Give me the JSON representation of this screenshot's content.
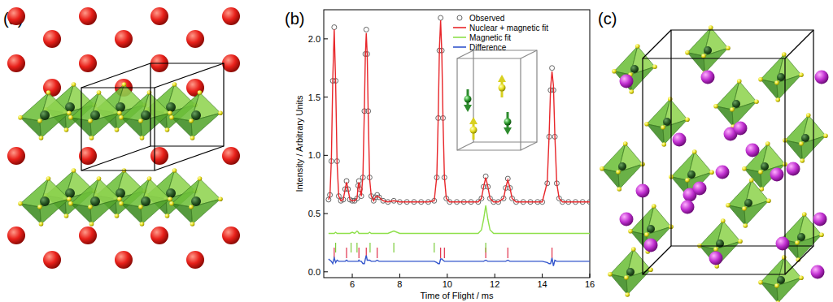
{
  "panel_labels": [
    "(a)",
    "(b)",
    "(c)"
  ],
  "chart_data": {
    "type": "line",
    "x_label": "Time of Flight / ms",
    "y_label": "Intensity / Arbitrary Units",
    "xlim": [
      4.8,
      16
    ],
    "ylim": [
      -0.05,
      2.25
    ],
    "xticks": [
      6,
      8,
      10,
      12,
      14,
      16
    ],
    "yticks": [
      {
        "value": 0,
        "label": "0.0"
      },
      0.5,
      {
        "value": 1,
        "label": "1.0"
      },
      1.5,
      {
        "value": 2,
        "label": "2.0"
      }
    ],
    "grid": false,
    "legend": "upper right",
    "x": [
      5.0,
      5.06,
      5.12,
      5.18,
      5.24,
      5.3,
      5.36,
      5.43,
      5.52,
      5.62,
      5.7,
      5.76,
      5.82,
      5.9,
      6.0,
      6.1,
      6.2,
      6.25,
      6.28,
      6.32,
      6.38,
      6.45,
      6.51,
      6.55,
      6.59,
      6.63,
      6.67,
      6.73,
      6.8,
      6.9,
      6.97,
      7.05,
      7.13,
      7.3,
      7.5,
      7.75,
      8.0,
      8.3,
      8.6,
      8.9,
      9.2,
      9.45,
      9.56,
      9.62,
      9.67,
      9.72,
      9.77,
      9.82,
      9.88,
      9.96,
      10.1,
      10.4,
      10.7,
      11.0,
      11.3,
      11.44,
      11.53,
      11.62,
      11.71,
      11.8,
      11.95,
      12.15,
      12.37,
      12.46,
      12.55,
      12.64,
      12.73,
      12.9,
      13.2,
      13.5,
      13.8,
      14.0,
      14.21,
      14.29,
      14.35,
      14.41,
      14.47,
      14.53,
      14.61,
      14.71,
      14.85,
      15.1,
      15.4,
      15.7,
      16.0
    ],
    "series": [
      {
        "name": "Observed",
        "type": "scatter",
        "marker": "circle",
        "color": "#666666",
        "values": [
          0.62,
          0.66,
          0.95,
          1.64,
          2.1,
          1.64,
          0.95,
          0.65,
          0.61,
          0.62,
          0.71,
          0.78,
          0.71,
          0.62,
          0.61,
          0.61,
          0.63,
          0.74,
          0.78,
          0.71,
          0.65,
          0.81,
          1.38,
          1.87,
          2.08,
          1.87,
          1.38,
          0.81,
          0.65,
          0.61,
          0.64,
          0.66,
          0.64,
          0.61,
          0.6,
          0.61,
          0.6,
          0.6,
          0.6,
          0.6,
          0.6,
          0.61,
          0.81,
          1.32,
          1.9,
          2.18,
          1.9,
          1.32,
          0.81,
          0.63,
          0.6,
          0.6,
          0.6,
          0.6,
          0.6,
          0.63,
          0.73,
          0.82,
          0.73,
          0.63,
          0.6,
          0.6,
          0.63,
          0.72,
          0.8,
          0.72,
          0.63,
          0.6,
          0.6,
          0.6,
          0.6,
          0.6,
          0.76,
          1.16,
          1.56,
          1.75,
          1.56,
          1.16,
          0.76,
          0.63,
          0.6,
          0.6,
          0.6,
          0.6,
          0.6
        ]
      },
      {
        "name": "Nuclear + magnetic fit",
        "type": "line",
        "color": "#e8262a",
        "values": [
          0.62,
          0.65,
          0.96,
          1.66,
          2.08,
          1.62,
          0.94,
          0.65,
          0.61,
          0.62,
          0.71,
          0.77,
          0.71,
          0.62,
          0.61,
          0.61,
          0.63,
          0.74,
          0.77,
          0.71,
          0.65,
          0.83,
          1.4,
          1.85,
          2.05,
          1.86,
          1.37,
          0.8,
          0.65,
          0.61,
          0.64,
          0.65,
          0.64,
          0.61,
          0.6,
          0.61,
          0.6,
          0.6,
          0.6,
          0.6,
          0.6,
          0.61,
          0.82,
          1.34,
          1.92,
          2.16,
          1.88,
          1.31,
          0.81,
          0.63,
          0.6,
          0.6,
          0.6,
          0.6,
          0.6,
          0.63,
          0.73,
          0.81,
          0.73,
          0.63,
          0.6,
          0.6,
          0.63,
          0.72,
          0.79,
          0.72,
          0.63,
          0.6,
          0.6,
          0.6,
          0.6,
          0.6,
          0.77,
          1.18,
          1.58,
          1.72,
          1.6,
          1.17,
          0.76,
          0.63,
          0.6,
          0.6,
          0.6,
          0.6,
          0.6
        ]
      },
      {
        "name": "Magnetic fit",
        "type": "line",
        "color": "#8ee04a",
        "values": [
          0.33,
          0.33,
          0.33,
          0.33,
          0.33,
          0.34,
          0.33,
          0.33,
          0.33,
          0.33,
          0.33,
          0.33,
          0.33,
          0.33,
          0.34,
          0.33,
          0.35,
          0.34,
          0.33,
          0.33,
          0.33,
          0.33,
          0.33,
          0.33,
          0.33,
          0.33,
          0.33,
          0.34,
          0.33,
          0.33,
          0.33,
          0.33,
          0.33,
          0.33,
          0.33,
          0.35,
          0.33,
          0.33,
          0.33,
          0.33,
          0.33,
          0.33,
          0.33,
          0.33,
          0.33,
          0.33,
          0.33,
          0.33,
          0.33,
          0.33,
          0.33,
          0.33,
          0.33,
          0.33,
          0.33,
          0.36,
          0.45,
          0.57,
          0.45,
          0.36,
          0.33,
          0.33,
          0.33,
          0.33,
          0.33,
          0.33,
          0.33,
          0.33,
          0.33,
          0.33,
          0.33,
          0.33,
          0.33,
          0.33,
          0.33,
          0.33,
          0.33,
          0.33,
          0.33,
          0.33,
          0.33,
          0.33,
          0.33,
          0.33,
          0.33
        ]
      },
      {
        "name": "Difference",
        "type": "line",
        "color": "#3355cc",
        "values": [
          0.11,
          0.1,
          0.09,
          0.07,
          0.12,
          0.08,
          0.1,
          0.09,
          0.09,
          0.09,
          0.09,
          0.1,
          0.09,
          0.09,
          0.09,
          0.09,
          0.09,
          0.09,
          0.1,
          0.09,
          0.09,
          0.07,
          0.07,
          0.11,
          0.14,
          0.1,
          0.1,
          0.1,
          0.09,
          0.09,
          0.09,
          0.1,
          0.09,
          0.09,
          0.09,
          0.09,
          0.09,
          0.09,
          0.09,
          0.09,
          0.09,
          0.09,
          0.08,
          0.07,
          0.07,
          0.11,
          0.11,
          0.1,
          0.09,
          0.09,
          0.09,
          0.09,
          0.09,
          0.09,
          0.09,
          0.09,
          0.09,
          0.1,
          0.09,
          0.09,
          0.09,
          0.09,
          0.09,
          0.09,
          0.1,
          0.09,
          0.09,
          0.09,
          0.09,
          0.09,
          0.09,
          0.09,
          0.08,
          0.07,
          0.07,
          0.12,
          0.05,
          0.1,
          0.09,
          0.09,
          0.09,
          0.09,
          0.09,
          0.09,
          0.09
        ]
      }
    ],
    "reflections": [
      {
        "color": "#e0304a",
        "x": [
          5.24,
          5.76,
          6.28,
          6.59,
          7.05,
          9.72,
          9.88,
          11.62,
          12.55,
          14.41
        ]
      },
      {
        "color": "#7ccc3c",
        "x": [
          5.3,
          5.95,
          6.2,
          6.75,
          7.75,
          9.45,
          11.62
        ]
      }
    ]
  }
}
